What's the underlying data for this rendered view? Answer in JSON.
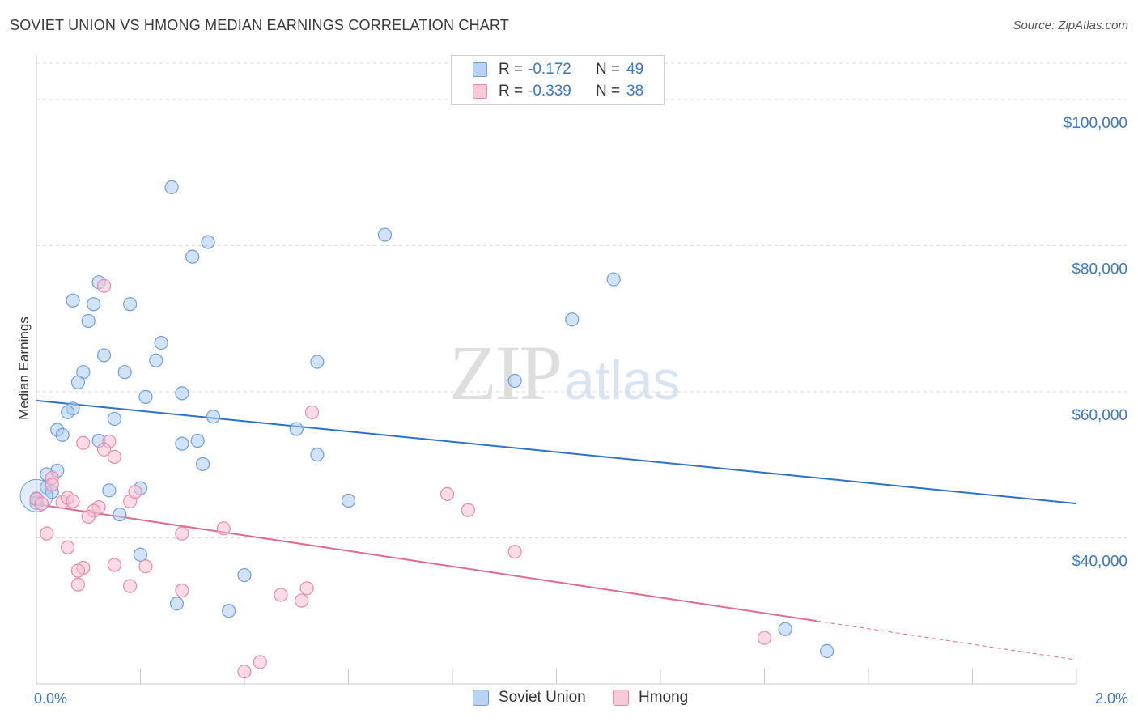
{
  "title": "SOVIET UNION VS HMONG MEDIAN EARNINGS CORRELATION CHART",
  "source": "Source: ZipAtlas.com",
  "watermark": {
    "zip": "ZIP",
    "atlas": "atlas"
  },
  "colors": {
    "soviet_fill": "#aaccf2",
    "soviet_stroke": "#6f9fd8",
    "soviet_line": "#2b72cc",
    "hmong_fill": "#f7c0d2",
    "hmong_stroke": "#e88aab",
    "hmong_line": "#e06a96",
    "accent_text": "#3b78c7",
    "grid": "#d9d9d9"
  },
  "legend": {
    "rows": [
      {
        "r_label": "R =",
        "r_value": "-0.172",
        "n_label": "N =",
        "n_value": "49"
      },
      {
        "r_label": "R =",
        "r_value": "-0.339",
        "n_label": "N =",
        "n_value": "38"
      }
    ]
  },
  "chart_data": {
    "type": "scatter",
    "title": "SOVIET UNION VS HMONG MEDIAN EARNINGS CORRELATION CHART",
    "xlabel": "",
    "ylabel": "Median Earnings",
    "xlim": [
      0,
      2.0
    ],
    "ylim": [
      20000,
      105000
    ],
    "x_tick_labels": [
      "0.0%",
      "2.0%"
    ],
    "y_ticks": [
      {
        "value": 40000,
        "label": "$40,000"
      },
      {
        "value": 60000,
        "label": "$60,000"
      },
      {
        "value": 80000,
        "label": "$80,000"
      },
      {
        "value": 100000,
        "label": "$100,000"
      }
    ],
    "series": [
      {
        "name": "Soviet Union",
        "r": -0.172,
        "n": 49,
        "trend": {
          "x0": 0.0,
          "y0": 58800,
          "x1": 2.0,
          "y1": 44700,
          "solid_until": 2.0
        },
        "points": [
          [
            0.26,
            88000
          ],
          [
            0.33,
            80500
          ],
          [
            0.3,
            78500
          ],
          [
            0.67,
            81500
          ],
          [
            0.12,
            75000
          ],
          [
            0.07,
            72500
          ],
          [
            0.11,
            72000
          ],
          [
            0.18,
            72000
          ],
          [
            0.1,
            69700
          ],
          [
            0.24,
            66700
          ],
          [
            0.13,
            65000
          ],
          [
            0.23,
            64300
          ],
          [
            0.54,
            64100
          ],
          [
            0.09,
            62700
          ],
          [
            0.17,
            62700
          ],
          [
            0.08,
            61300
          ],
          [
            0.28,
            59800
          ],
          [
            0.21,
            59300
          ],
          [
            0.07,
            57700
          ],
          [
            0.06,
            57200
          ],
          [
            0.15,
            56300
          ],
          [
            0.34,
            56600
          ],
          [
            0.04,
            54800
          ],
          [
            0.05,
            54100
          ],
          [
            0.12,
            53300
          ],
          [
            0.31,
            53300
          ],
          [
            0.28,
            52900
          ],
          [
            0.5,
            54900
          ],
          [
            0.54,
            51400
          ],
          [
            0.32,
            50100
          ],
          [
            0.04,
            49200
          ],
          [
            0.02,
            48700
          ],
          [
            0.02,
            46900
          ],
          [
            0.03,
            46300
          ],
          [
            0.14,
            46500
          ],
          [
            0.2,
            46800
          ],
          [
            0.0,
            45400
          ],
          [
            0.0,
            44800
          ],
          [
            0.6,
            45100
          ],
          [
            0.16,
            43200
          ],
          [
            0.2,
            37700
          ],
          [
            0.4,
            34900
          ],
          [
            0.27,
            31000
          ],
          [
            0.37,
            30000
          ],
          [
            0.92,
            61500
          ],
          [
            1.03,
            69900
          ],
          [
            1.11,
            75400
          ],
          [
            1.44,
            27500
          ],
          [
            1.52,
            24500
          ]
        ]
      },
      {
        "name": "Hmong",
        "r": -0.339,
        "n": 38,
        "trend": {
          "x0": 0.0,
          "y0": 44600,
          "x1": 2.0,
          "y1": 23300,
          "solid_until": 1.5
        },
        "points": [
          [
            0.13,
            74500
          ],
          [
            0.53,
            57200
          ],
          [
            0.09,
            53000
          ],
          [
            0.14,
            53200
          ],
          [
            0.13,
            52100
          ],
          [
            0.15,
            51100
          ],
          [
            0.03,
            48200
          ],
          [
            0.03,
            47300
          ],
          [
            0.0,
            45300
          ],
          [
            0.01,
            44700
          ],
          [
            0.05,
            44900
          ],
          [
            0.06,
            45500
          ],
          [
            0.07,
            45000
          ],
          [
            0.12,
            44200
          ],
          [
            0.11,
            43700
          ],
          [
            0.1,
            42900
          ],
          [
            0.18,
            45000
          ],
          [
            0.19,
            46300
          ],
          [
            0.79,
            46000
          ],
          [
            0.83,
            43800
          ],
          [
            0.36,
            41300
          ],
          [
            0.28,
            40600
          ],
          [
            0.02,
            40600
          ],
          [
            0.06,
            38700
          ],
          [
            0.92,
            38100
          ],
          [
            0.09,
            35900
          ],
          [
            0.08,
            35500
          ],
          [
            0.15,
            36300
          ],
          [
            0.21,
            36100
          ],
          [
            0.08,
            33600
          ],
          [
            0.18,
            33400
          ],
          [
            0.28,
            32800
          ],
          [
            0.47,
            32200
          ],
          [
            0.51,
            31400
          ],
          [
            0.52,
            33100
          ],
          [
            0.43,
            23000
          ],
          [
            0.4,
            21700
          ],
          [
            1.4,
            26300
          ]
        ]
      }
    ]
  },
  "bottom_legend": [
    {
      "label": "Soviet Union"
    },
    {
      "label": "Hmong"
    }
  ]
}
